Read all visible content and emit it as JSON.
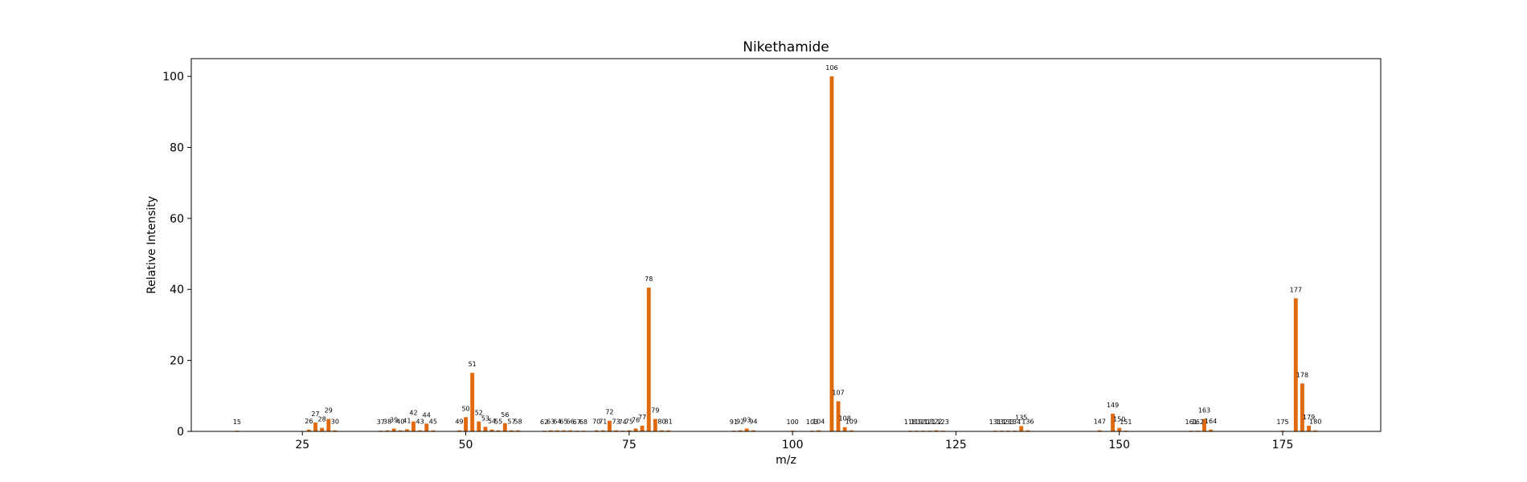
{
  "chart_data": {
    "type": "bar",
    "title": "Nikethamide",
    "xlabel": "m/z",
    "ylabel": "Relative Intensity",
    "xlim": [
      8,
      190
    ],
    "ylim": [
      0,
      105
    ],
    "xticks": [
      25,
      50,
      75,
      100,
      125,
      150,
      175
    ],
    "yticks": [
      0,
      20,
      40,
      60,
      80,
      100
    ],
    "grid": false,
    "legend": "none",
    "bar_color": "#e06a10",
    "x": [
      15,
      26,
      27,
      28,
      29,
      30,
      37,
      38,
      39,
      40,
      41,
      42,
      43,
      44,
      45,
      49,
      50,
      51,
      52,
      53,
      54,
      55,
      56,
      57,
      58,
      62,
      63,
      64,
      65,
      66,
      67,
      68,
      70,
      71,
      72,
      73,
      74,
      75,
      76,
      77,
      78,
      79,
      80,
      81,
      91,
      92,
      93,
      94,
      100,
      103,
      104,
      106,
      107,
      108,
      109,
      118,
      119,
      120,
      121,
      122,
      123,
      131,
      132,
      133,
      134,
      135,
      136,
      147,
      149,
      150,
      151,
      161,
      162,
      163,
      164,
      175,
      177,
      178,
      179,
      180
    ],
    "values": [
      0.2,
      0.5,
      2.5,
      1.0,
      3.5,
      0.3,
      0.2,
      0.3,
      0.8,
      0.3,
      0.6,
      2.8,
      0.3,
      2.2,
      0.3,
      0.3,
      4.0,
      16.5,
      2.8,
      1.3,
      0.5,
      0.3,
      2.3,
      0.3,
      0.3,
      0.2,
      0.3,
      0.3,
      0.3,
      0.3,
      0.2,
      0.2,
      0.3,
      0.3,
      3.0,
      0.3,
      0.2,
      0.3,
      0.8,
      1.6,
      40.5,
      3.5,
      0.3,
      0.3,
      0.2,
      0.3,
      0.8,
      0.3,
      0.2,
      0.2,
      0.3,
      100,
      8.5,
      1.2,
      0.3,
      0.2,
      0.2,
      0.2,
      0.2,
      0.3,
      0.2,
      0.2,
      0.2,
      0.2,
      0.2,
      1.5,
      0.3,
      0.3,
      5.0,
      1.0,
      0.2,
      0.2,
      0.2,
      3.5,
      0.5,
      0.2,
      37.5,
      13.5,
      1.6,
      0.3
    ],
    "labels": [
      "15",
      "26",
      "27",
      "28",
      "29",
      "30",
      "37",
      "38",
      "39",
      "40",
      "41",
      "42",
      "43",
      "44",
      "45",
      "49",
      "50",
      "51",
      "52",
      "53",
      "54",
      "55",
      "56",
      "57",
      "58",
      "62",
      "63",
      "64",
      "65",
      "66",
      "67",
      "68",
      "70",
      "71",
      "72",
      "73",
      "74",
      "75",
      "76",
      "77",
      "78",
      "79",
      "80",
      "81",
      "91",
      "92",
      "93",
      "94",
      "100",
      "103",
      "104",
      "106",
      "107",
      "108",
      "109",
      "118",
      "119",
      "120",
      "121",
      "122",
      "123",
      "131",
      "132",
      "133",
      "134",
      "135",
      "136",
      "147",
      "149",
      "150",
      "151",
      "161",
      "162",
      "163",
      "164",
      "175",
      "177",
      "178",
      "179",
      "180"
    ]
  }
}
